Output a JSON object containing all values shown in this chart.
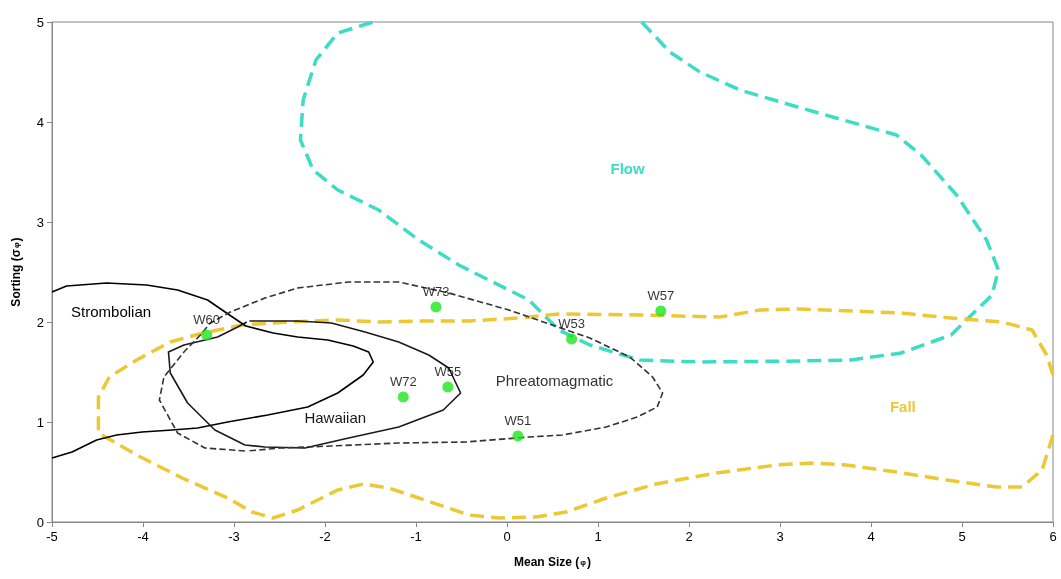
{
  "chart_data": {
    "type": "line",
    "xlabel": "Mean Size ($_{φ}$)",
    "ylabel": "Sorting (σ$_{φ}$)",
    "xlim": [
      -5,
      6
    ],
    "xticks": [
      -5,
      -4,
      -3,
      -2,
      -1,
      0,
      1,
      2,
      3,
      4,
      5,
      6
    ],
    "ylim": [
      0,
      5
    ],
    "yticks": [
      0,
      1,
      2,
      3,
      4,
      5
    ],
    "grid": false,
    "series": [
      {
        "name": "Flow",
        "color": "#3ddcc4",
        "line_style": "dashed",
        "marker": "none",
        "x": [
          1.48,
          1.79,
          2.12,
          2.56,
          3.23,
          3.89,
          4.28,
          4.55,
          4.94,
          5.27,
          5.4,
          5.33,
          4.88,
          4.33,
          3.78,
          3.23,
          2.12,
          1.46,
          0.91,
          0.57,
          0.24,
          -0.09,
          -0.53,
          -0.97,
          -1.41,
          -1.86,
          -2.13,
          -2.27,
          -2.24,
          -2.1,
          -1.86,
          -1.47
        ],
        "values": [
          5.0,
          4.7,
          4.5,
          4.32,
          4.14,
          3.97,
          3.87,
          3.67,
          3.27,
          2.82,
          2.52,
          2.27,
          1.87,
          1.69,
          1.62,
          1.61,
          1.6,
          1.62,
          1.77,
          1.92,
          2.22,
          2.37,
          2.57,
          2.82,
          3.12,
          3.32,
          3.52,
          3.82,
          4.22,
          4.62,
          4.89,
          5.0
        ]
      },
      {
        "name": "Fall",
        "color": "#ecc834",
        "line_style": "dashed",
        "marker": "none",
        "x": [
          6.0,
          5.88,
          5.66,
          5.38,
          4.83,
          4.28,
          3.73,
          3.34,
          2.96,
          2.3,
          1.64,
          1.09,
          0.65,
          0.32,
          -0.09,
          -0.42,
          -0.97,
          -1.3,
          -1.58,
          -1.86,
          -2.3,
          -2.57,
          -2.8,
          -3.07,
          -3.57,
          -4.07,
          -4.49,
          -4.49,
          -4.37,
          -4.07,
          -3.7,
          -3.34,
          -2.91,
          -2.41,
          -1.86,
          -1.41,
          -0.97,
          -0.42,
          0.13,
          0.57,
          1.46,
          2.34,
          2.78,
          3.23,
          4.33,
          4.88,
          5.44,
          5.77,
          5.93,
          6.0
        ],
        "values": [
          0.87,
          0.52,
          0.35,
          0.35,
          0.42,
          0.5,
          0.57,
          0.59,
          0.57,
          0.49,
          0.38,
          0.24,
          0.1,
          0.05,
          0.04,
          0.07,
          0.24,
          0.34,
          0.38,
          0.32,
          0.12,
          0.04,
          0.1,
          0.24,
          0.44,
          0.67,
          0.89,
          1.25,
          1.45,
          1.62,
          1.8,
          1.89,
          1.97,
          2.0,
          2.02,
          2.0,
          2.01,
          2.01,
          2.04,
          2.08,
          2.07,
          2.05,
          2.12,
          2.13,
          2.09,
          2.04,
          2.0,
          1.92,
          1.67,
          1.47
        ]
      },
      {
        "name": "Strombolian",
        "color": "#000000",
        "line_style": "solid",
        "marker": "none",
        "x": [
          -5.0,
          -4.84,
          -4.4,
          -3.96,
          -3.62,
          -3.29,
          -3.05,
          -2.87,
          -2.57,
          -2.3,
          -1.97,
          -1.69,
          -1.52,
          -1.47,
          -1.58,
          -1.86,
          -2.19,
          -2.63,
          -3.07,
          -3.4,
          -3.68,
          -4.01,
          -4.29,
          -4.51,
          -4.78,
          -5.0
        ],
        "values": [
          2.3,
          2.36,
          2.39,
          2.37,
          2.32,
          2.22,
          2.07,
          1.96,
          1.89,
          1.85,
          1.82,
          1.76,
          1.7,
          1.6,
          1.47,
          1.29,
          1.15,
          1.07,
          1.0,
          0.94,
          0.92,
          0.9,
          0.87,
          0.82,
          0.7,
          0.64
        ]
      },
      {
        "name": "Hawaiian",
        "color": "#1a1a1a",
        "line_style": "solid",
        "marker": "none",
        "x": [
          -2.83,
          -2.3,
          -1.93,
          -1.56,
          -1.19,
          -0.86,
          -0.64,
          -0.51,
          -0.7,
          -1.19,
          -1.74,
          -2.22,
          -2.66,
          -2.88,
          -3.21,
          -3.51,
          -3.7,
          -3.72,
          -3.55,
          -3.18,
          -2.96,
          -2.86
        ],
        "values": [
          2.01,
          2.01,
          1.99,
          1.9,
          1.8,
          1.67,
          1.54,
          1.29,
          1.12,
          0.95,
          0.84,
          0.74,
          0.75,
          0.77,
          0.92,
          1.19,
          1.49,
          1.7,
          1.77,
          1.85,
          1.95,
          2.0
        ]
      },
      {
        "name": "Phreatomagmatic",
        "color": "#333333",
        "line_style": "dashed",
        "marker": "none",
        "x": [
          -2.88,
          -3.32,
          -3.62,
          -3.82,
          -3.77,
          -3.55,
          -3.37,
          -3.26,
          -3.04,
          -2.66,
          -2.3,
          -1.74,
          -1.19,
          -0.64,
          0.02,
          0.91,
          1.35,
          1.6,
          1.71,
          1.65,
          1.43,
          1.09,
          0.61,
          0.24,
          -0.45,
          -1.19,
          -1.93,
          -2.49,
          -2.85
        ],
        "values": [
          0.71,
          0.74,
          0.89,
          1.22,
          1.45,
          1.7,
          1.87,
          1.99,
          2.1,
          2.24,
          2.34,
          2.4,
          2.4,
          2.29,
          2.12,
          1.84,
          1.65,
          1.45,
          1.29,
          1.15,
          1.05,
          0.95,
          0.87,
          0.85,
          0.8,
          0.79,
          0.76,
          0.74,
          0.71
        ]
      },
      {
        "type": "scatter",
        "color": "#1ee61e",
        "marker": "circle",
        "x": [
          -3.3,
          -0.78,
          -1.14,
          -0.65,
          0.12,
          0.71,
          1.69
        ],
        "values": [
          1.87,
          2.15,
          1.25,
          1.35,
          0.86,
          1.83,
          2.11
        ],
        "value_labels": [
          "W60",
          "W73",
          "W72",
          "W55",
          "W51",
          "W53",
          "W57"
        ]
      }
    ]
  }
}
